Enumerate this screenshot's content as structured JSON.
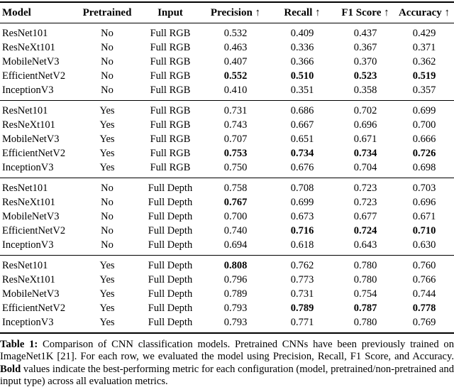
{
  "table": {
    "columns": [
      "Model",
      "Pretrained",
      "Input",
      "Precision ↑",
      "Recall ↑",
      "F1 Score ↑",
      "Accuracy ↑"
    ],
    "cell_names": [
      "model-cell",
      "pretrained-cell",
      "input-cell",
      "precision-cell",
      "recall-cell",
      "f1-score-cell",
      "accuracy-cell"
    ],
    "groups": [
      {
        "name": "non-pretrained-full-rgb",
        "rows": [
          {
            "model": "ResNet101",
            "pretrained": "No",
            "input": "Full RGB",
            "values": [
              "0.532",
              "0.409",
              "0.437",
              "0.429"
            ],
            "bold": []
          },
          {
            "model": "ResNeXt101",
            "pretrained": "No",
            "input": "Full RGB",
            "values": [
              "0.463",
              "0.336",
              "0.367",
              "0.371"
            ],
            "bold": []
          },
          {
            "model": "MobileNetV3",
            "pretrained": "No",
            "input": "Full RGB",
            "values": [
              "0.407",
              "0.366",
              "0.370",
              "0.362"
            ],
            "bold": []
          },
          {
            "model": "EfficientNetV2",
            "pretrained": "No",
            "input": "Full RGB",
            "values": [
              "0.552",
              "0.510",
              "0.523",
              "0.519"
            ],
            "bold": [
              0,
              1,
              2,
              3
            ]
          },
          {
            "model": "InceptionV3",
            "pretrained": "No",
            "input": "Full RGB",
            "values": [
              "0.410",
              "0.351",
              "0.358",
              "0.357"
            ],
            "bold": []
          }
        ]
      },
      {
        "name": "pretrained-full-rgb",
        "rows": [
          {
            "model": "ResNet101",
            "pretrained": "Yes",
            "input": "Full RGB",
            "values": [
              "0.731",
              "0.686",
              "0.702",
              "0.699"
            ],
            "bold": []
          },
          {
            "model": "ResNeXt101",
            "pretrained": "Yes",
            "input": "Full RGB",
            "values": [
              "0.743",
              "0.667",
              "0.696",
              "0.700"
            ],
            "bold": []
          },
          {
            "model": "MobileNetV3",
            "pretrained": "Yes",
            "input": "Full RGB",
            "values": [
              "0.707",
              "0.651",
              "0.671",
              "0.666"
            ],
            "bold": []
          },
          {
            "model": "EfficientNetV2",
            "pretrained": "Yes",
            "input": "Full RGB",
            "values": [
              "0.753",
              "0.734",
              "0.734",
              "0.726"
            ],
            "bold": [
              0,
              1,
              2,
              3
            ]
          },
          {
            "model": "InceptionV3",
            "pretrained": "Yes",
            "input": "Full RGB",
            "values": [
              "0.750",
              "0.676",
              "0.704",
              "0.698"
            ],
            "bold": []
          }
        ]
      },
      {
        "name": "non-pretrained-full-depth",
        "rows": [
          {
            "model": "ResNet101",
            "pretrained": "No",
            "input": "Full Depth",
            "values": [
              "0.758",
              "0.708",
              "0.723",
              "0.703"
            ],
            "bold": []
          },
          {
            "model": "ResNeXt101",
            "pretrained": "No",
            "input": "Full Depth",
            "values": [
              "0.767",
              "0.699",
              "0.723",
              "0.696"
            ],
            "bold": [
              0
            ]
          },
          {
            "model": "MobileNetV3",
            "pretrained": "No",
            "input": "Full Depth",
            "values": [
              "0.700",
              "0.673",
              "0.677",
              "0.671"
            ],
            "bold": []
          },
          {
            "model": "EfficientNetV2",
            "pretrained": "No",
            "input": "Full Depth",
            "values": [
              "0.740",
              "0.716",
              "0.724",
              "0.710"
            ],
            "bold": [
              1,
              2,
              3
            ]
          },
          {
            "model": "InceptionV3",
            "pretrained": "No",
            "input": "Full Depth",
            "values": [
              "0.694",
              "0.618",
              "0.643",
              "0.630"
            ],
            "bold": []
          }
        ]
      },
      {
        "name": "pretrained-full-depth",
        "rows": [
          {
            "model": "ResNet101",
            "pretrained": "Yes",
            "input": "Full Depth",
            "values": [
              "0.808",
              "0.762",
              "0.780",
              "0.760"
            ],
            "bold": [
              0
            ]
          },
          {
            "model": "ResNeXt101",
            "pretrained": "Yes",
            "input": "Full Depth",
            "values": [
              "0.796",
              "0.773",
              "0.780",
              "0.766"
            ],
            "bold": []
          },
          {
            "model": "MobileNetV3",
            "pretrained": "Yes",
            "input": "Full Depth",
            "values": [
              "0.789",
              "0.731",
              "0.754",
              "0.744"
            ],
            "bold": []
          },
          {
            "model": "EfficientNetV2",
            "pretrained": "Yes",
            "input": "Full Depth",
            "values": [
              "0.793",
              "0.789",
              "0.787",
              "0.778"
            ],
            "bold": [
              1,
              2,
              3
            ]
          },
          {
            "model": "InceptionV3",
            "pretrained": "Yes",
            "input": "Full Depth",
            "values": [
              "0.793",
              "0.771",
              "0.780",
              "0.769"
            ],
            "bold": []
          }
        ]
      }
    ]
  },
  "caption": {
    "label": "Table 1:",
    "body": " Comparison of CNN classification models. Pretrained CNNs have been previously trained on ImageNet1K [21]. For each row, we evaluated the model using Precision, Recall, F1 Score, and Accuracy. ",
    "bold_word": "Bold",
    "after": " values indicate the best-performing metric for each configuration (model, pretrained/non-pretrained and input type) across all evaluation metrics."
  }
}
